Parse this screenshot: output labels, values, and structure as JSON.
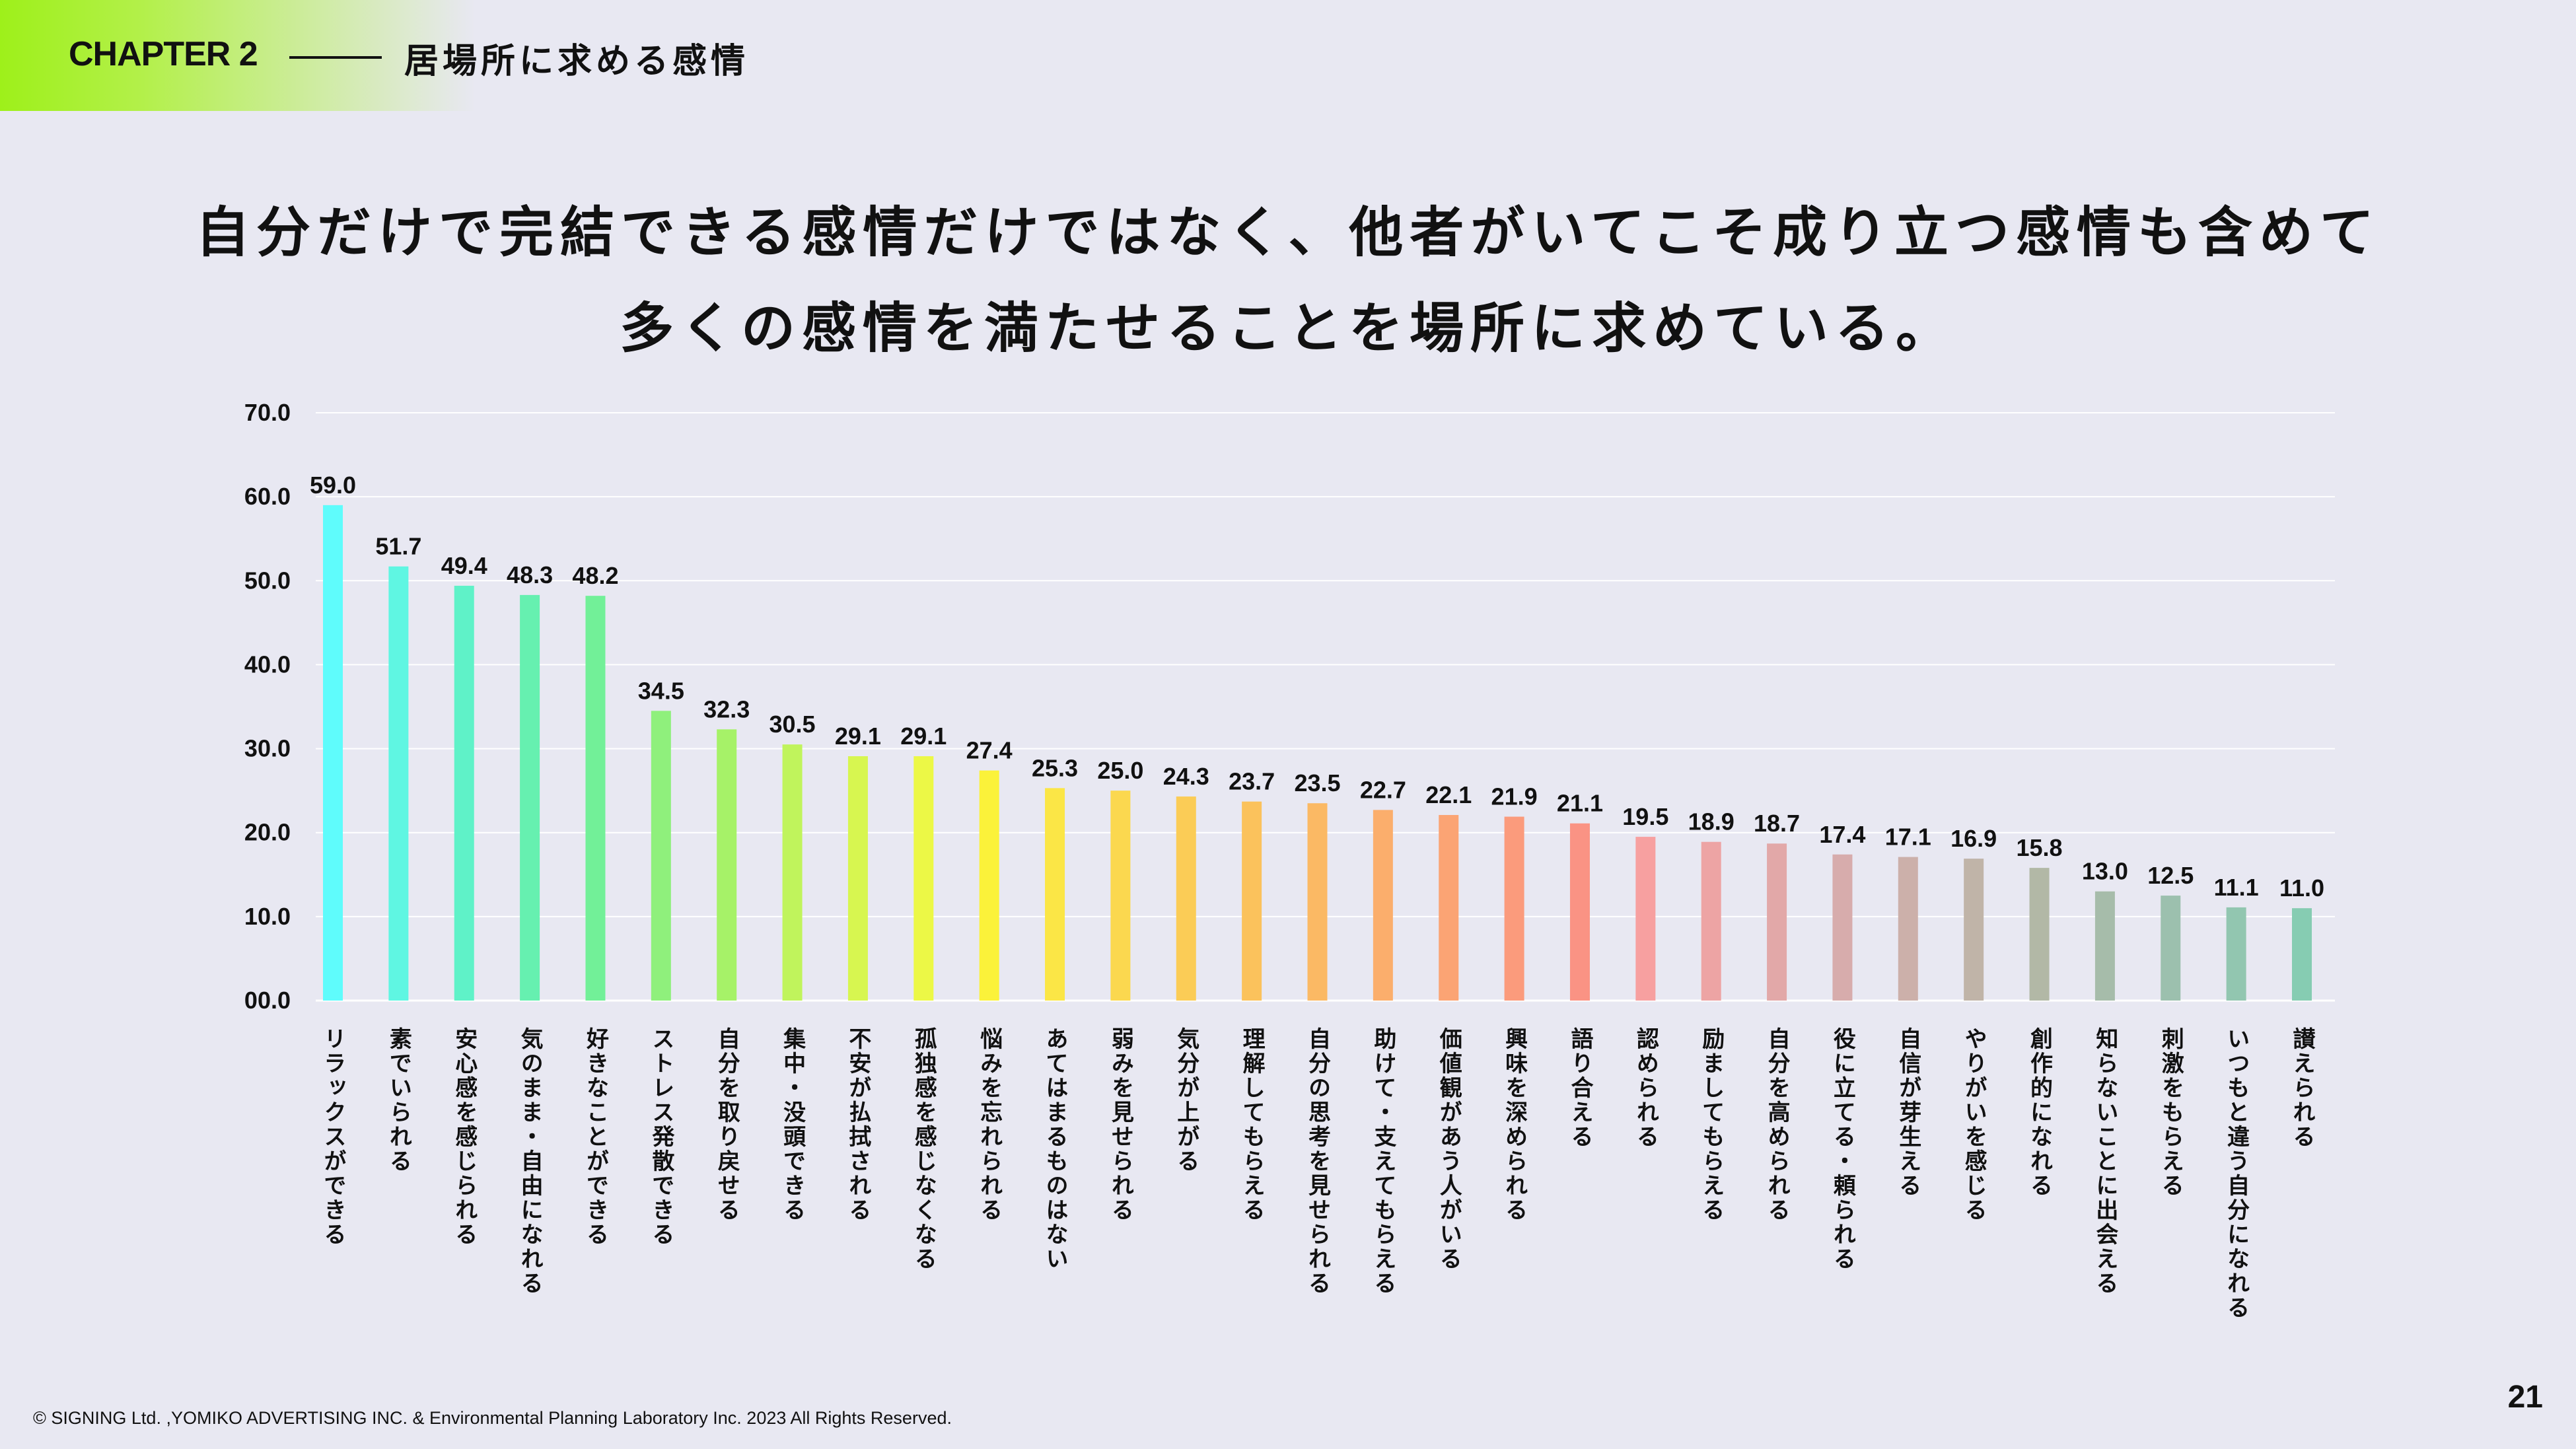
{
  "header": {
    "chapter": "CHAPTER 2",
    "title": "居場所に求める感情"
  },
  "headline": {
    "line1": "自分だけで完結できる感情だけではなく、他者がいてこそ成り立つ感情も含めて",
    "line2": "多くの感情を満たせることを場所に求めている。"
  },
  "chart_data": {
    "type": "bar",
    "ylim": [
      0,
      70
    ],
    "y_ticks": [
      "00.0",
      "10.0",
      "20.0",
      "30.0",
      "40.0",
      "50.0",
      "60.0",
      "70.0"
    ],
    "grid": true,
    "categories": [
      "リラックスができる",
      "素でいられる",
      "安心感を感じられる",
      "気のまま・自由になれる",
      "好きなことができる",
      "ストレス発散できる",
      "自分を取り戻せる",
      "集中・没頭できる",
      "不安が払拭される",
      "孤独感を感じなくなる",
      "悩みを忘れられる",
      "あてはまるものはない",
      "弱みを見せられる",
      "気分が上がる",
      "理解してもらえる",
      "自分の思考を見せられる",
      "助けて・支えてもらえる",
      "価値観があう人がいる",
      "興味を深められる",
      "語り合える",
      "認められる",
      "励ましてもらえる",
      "自分を高められる",
      "役に立てる・頼られる",
      "自信が芽生える",
      "やりがいを感じる",
      "創作的になれる",
      "知らないことに出会える",
      "刺激をもらえる",
      "いつもと違う自分になれる",
      "讃えられる"
    ],
    "values": [
      59.0,
      51.7,
      49.4,
      48.3,
      48.2,
      34.5,
      32.3,
      30.5,
      29.1,
      29.1,
      27.4,
      25.3,
      25.0,
      24.3,
      23.7,
      23.5,
      22.7,
      22.1,
      21.9,
      21.1,
      19.5,
      18.9,
      18.7,
      17.4,
      17.1,
      16.9,
      15.8,
      13.0,
      12.5,
      11.1,
      11.0
    ],
    "labels": [
      "59.0",
      "51.7",
      "49.4",
      "48.3",
      "48.2",
      "34.5",
      "32.3",
      "30.5",
      "29.1",
      "29.1",
      "27.4",
      "25.3",
      "25.0",
      "24.3",
      "23.7",
      "23.5",
      "22.7",
      "22.1",
      "21.9",
      "21.1",
      "19.5",
      "18.9",
      "18.7",
      "17.4",
      "17.1",
      "16.9",
      "15.8",
      "13.0",
      "12.5",
      "11.1",
      "11.0"
    ],
    "colors": [
      "#5ffcfc",
      "#5ff6e2",
      "#5ff2c8",
      "#66f0b0",
      "#72f098",
      "#8ff07c",
      "#a6f268",
      "#c0f45c",
      "#d7f650",
      "#ecf846",
      "#fbf23a",
      "#fbe646",
      "#fbd84f",
      "#fbcc56",
      "#fbc25c",
      "#fbb964",
      "#fbae6c",
      "#fba474",
      "#fb9b7c",
      "#fa9384",
      "#f7a0a0",
      "#eda4a4",
      "#e2a8a8",
      "#d7acac",
      "#ccb0aa",
      "#c0b4a8",
      "#b2b8a6",
      "#a6bcaa",
      "#9cc0ae",
      "#92c6b0",
      "#86ccb2"
    ]
  },
  "footer": {
    "copyright": "© SIGNING Ltd. ,YOMIKO ADVERTISING INC. & Environmental Planning Laboratory Inc. 2023 All Rights Reserved.",
    "page_number": "21"
  }
}
